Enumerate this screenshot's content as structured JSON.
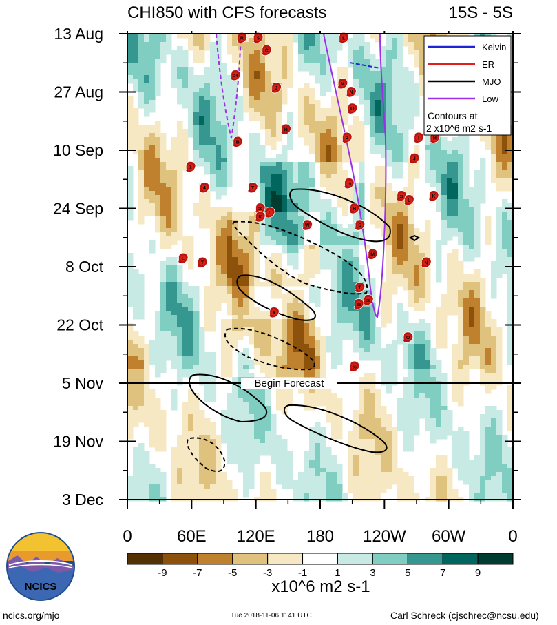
{
  "chart_data": {
    "type": "heatmap",
    "title": "CHI850 with CFS forecasts",
    "region": "15S - 5S",
    "x_ticks": [
      "0",
      "60E",
      "120E",
      "180",
      "120W",
      "60W",
      "0"
    ],
    "y_ticks": [
      "13 Aug",
      "27 Aug",
      "10 Sep",
      "24 Sep",
      "8 Oct",
      "22 Oct",
      "5 Nov",
      "19 Nov",
      "3 Dec"
    ],
    "begin_forecast_date": "5 Nov",
    "begin_forecast_label": "Begin Forecast",
    "legend": [
      {
        "name": "Kelvin",
        "color": "#1f24d8"
      },
      {
        "name": "ER",
        "color": "#e0201d"
      },
      {
        "name": "MJO",
        "color": "#000000"
      },
      {
        "name": "Low",
        "color": "#9b30e8"
      }
    ],
    "contour_note_line1": "Contours at",
    "contour_note_line2": "2 x10^6 m2 s-1",
    "colorbar_labels": [
      "-9",
      "-7",
      "-5",
      "-3",
      "-1",
      "1",
      "3",
      "5",
      "7",
      "9"
    ],
    "colorbar_colors": [
      "#543005",
      "#8c510a",
      "#bf812d",
      "#dfc27d",
      "#f6e8c3",
      "#ffffff",
      "#c7eae5",
      "#80cdc1",
      "#35978f",
      "#01665e",
      "#003c30"
    ],
    "colorbar_unit": "x10^6 m2 s-1",
    "storms": [
      {
        "label": "R",
        "lon": 107,
        "day": 1
      },
      {
        "label": "S",
        "lon": 122,
        "day": 1
      },
      {
        "label": "L",
        "lon": 202,
        "day": 1
      },
      {
        "label": "C",
        "lon": 130,
        "day": 4
      },
      {
        "label": "24",
        "lon": 101,
        "day": 10
      },
      {
        "label": "M",
        "lon": 201,
        "day": 12
      },
      {
        "label": "J",
        "lon": 139,
        "day": 13
      },
      {
        "label": "N",
        "lon": 209,
        "day": 14
      },
      {
        "label": "O",
        "lon": 210,
        "day": 18
      },
      {
        "label": "H",
        "lon": 148,
        "day": 23
      },
      {
        "label": "P",
        "lon": 205,
        "day": 25
      },
      {
        "label": "I",
        "lon": 272,
        "day": 25
      },
      {
        "label": "H",
        "lon": 287,
        "day": 25
      },
      {
        "label": "B",
        "lon": 103,
        "day": 26
      },
      {
        "label": "J",
        "lon": 268,
        "day": 30
      },
      {
        "label": "1",
        "lon": 59,
        "day": 32
      },
      {
        "label": "4",
        "lon": 72,
        "day": 37
      },
      {
        "label": "T",
        "lon": 117,
        "day": 37
      },
      {
        "label": "19",
        "lon": 207,
        "day": 36
      },
      {
        "label": "11",
        "lon": 256,
        "day": 39
      },
      {
        "label": "L",
        "lon": 263,
        "day": 40
      },
      {
        "label": "K",
        "lon": 286,
        "day": 39
      },
      {
        "label": "20",
        "lon": 124,
        "day": 42
      },
      {
        "label": "L",
        "lon": 133,
        "day": 43
      },
      {
        "label": "R",
        "lon": 212,
        "day": 42
      },
      {
        "label": "K",
        "lon": 124,
        "day": 44
      },
      {
        "label": "W",
        "lon": 168,
        "day": 46
      },
      {
        "label": "S",
        "lon": 217,
        "day": 46
      },
      {
        "label": "L",
        "lon": 52,
        "day": 54
      },
      {
        "label": "T",
        "lon": 70,
        "day": 55
      },
      {
        "label": "M",
        "lon": 229,
        "day": 53
      },
      {
        "label": "N",
        "lon": 279,
        "day": 55
      },
      {
        "label": "T",
        "lon": 217,
        "day": 61
      },
      {
        "label": "38",
        "lon": 216,
        "day": 65
      },
      {
        "label": "38",
        "lon": 225,
        "day": 64
      },
      {
        "label": "Y",
        "lon": 137,
        "day": 67
      },
      {
        "label": "O",
        "lon": 262,
        "day": 73
      },
      {
        "label": "36",
        "lon": 212,
        "day": 80
      }
    ]
  }
}
